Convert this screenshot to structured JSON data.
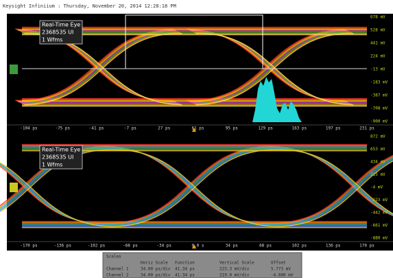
{
  "header": {
    "title": "Keysight Infiniium : Thursday, November 20, 2014 12:28:18 PM"
  },
  "panels": [
    {
      "label": [
        "Real-Time Eye",
        "2368535 UI",
        "1 Wfms"
      ],
      "y_labels": [
        "678 mV",
        "528 mV",
        "441 mV",
        "224 mV",
        "-13 mV",
        "-183 mV",
        "-387 mV",
        "-708 mV",
        "-900 mV"
      ],
      "x_labels": [
        "-104 ps",
        "-75 ps",
        "-41 ps",
        "-7 ps",
        "27 ps",
        "61 ps",
        "95 ps",
        "129 ps",
        "163 ps",
        "197 ps",
        "231 ps"
      ]
    },
    {
      "label": [
        "Real-Time Eye",
        "2368535 UI",
        "1 Wfms"
      ],
      "y_labels": [
        "872 mV",
        "653 mV",
        "434 mV",
        "215 mV",
        "-4 mV",
        "-223 mV",
        "-442 mV",
        "-661 mV",
        "-880 mV"
      ],
      "x_labels": [
        "-170 ps",
        "-136 ps",
        "-102 ps",
        "-68 ps",
        "-34 ps",
        "0.0 s",
        "34 ps",
        "68 ps",
        "102 ps",
        "136 ps",
        "170 ps"
      ]
    }
  ],
  "scales": {
    "title": "Scales",
    "columns": [
      "Horiz Scale",
      "Function",
      "Vertical Scale",
      "Offset"
    ],
    "rows": [
      {
        "name": "Channel 1",
        "cells": [
          "34.00 ps/div",
          "41.34 ps",
          "223.3 mV/div",
          "5.773 mV"
        ]
      },
      {
        "name": "Channel 2",
        "cells": [
          "34.00 ps/div",
          "41.34 ps",
          "219.0 mV/div",
          "-4.000 mV"
        ]
      }
    ]
  }
}
